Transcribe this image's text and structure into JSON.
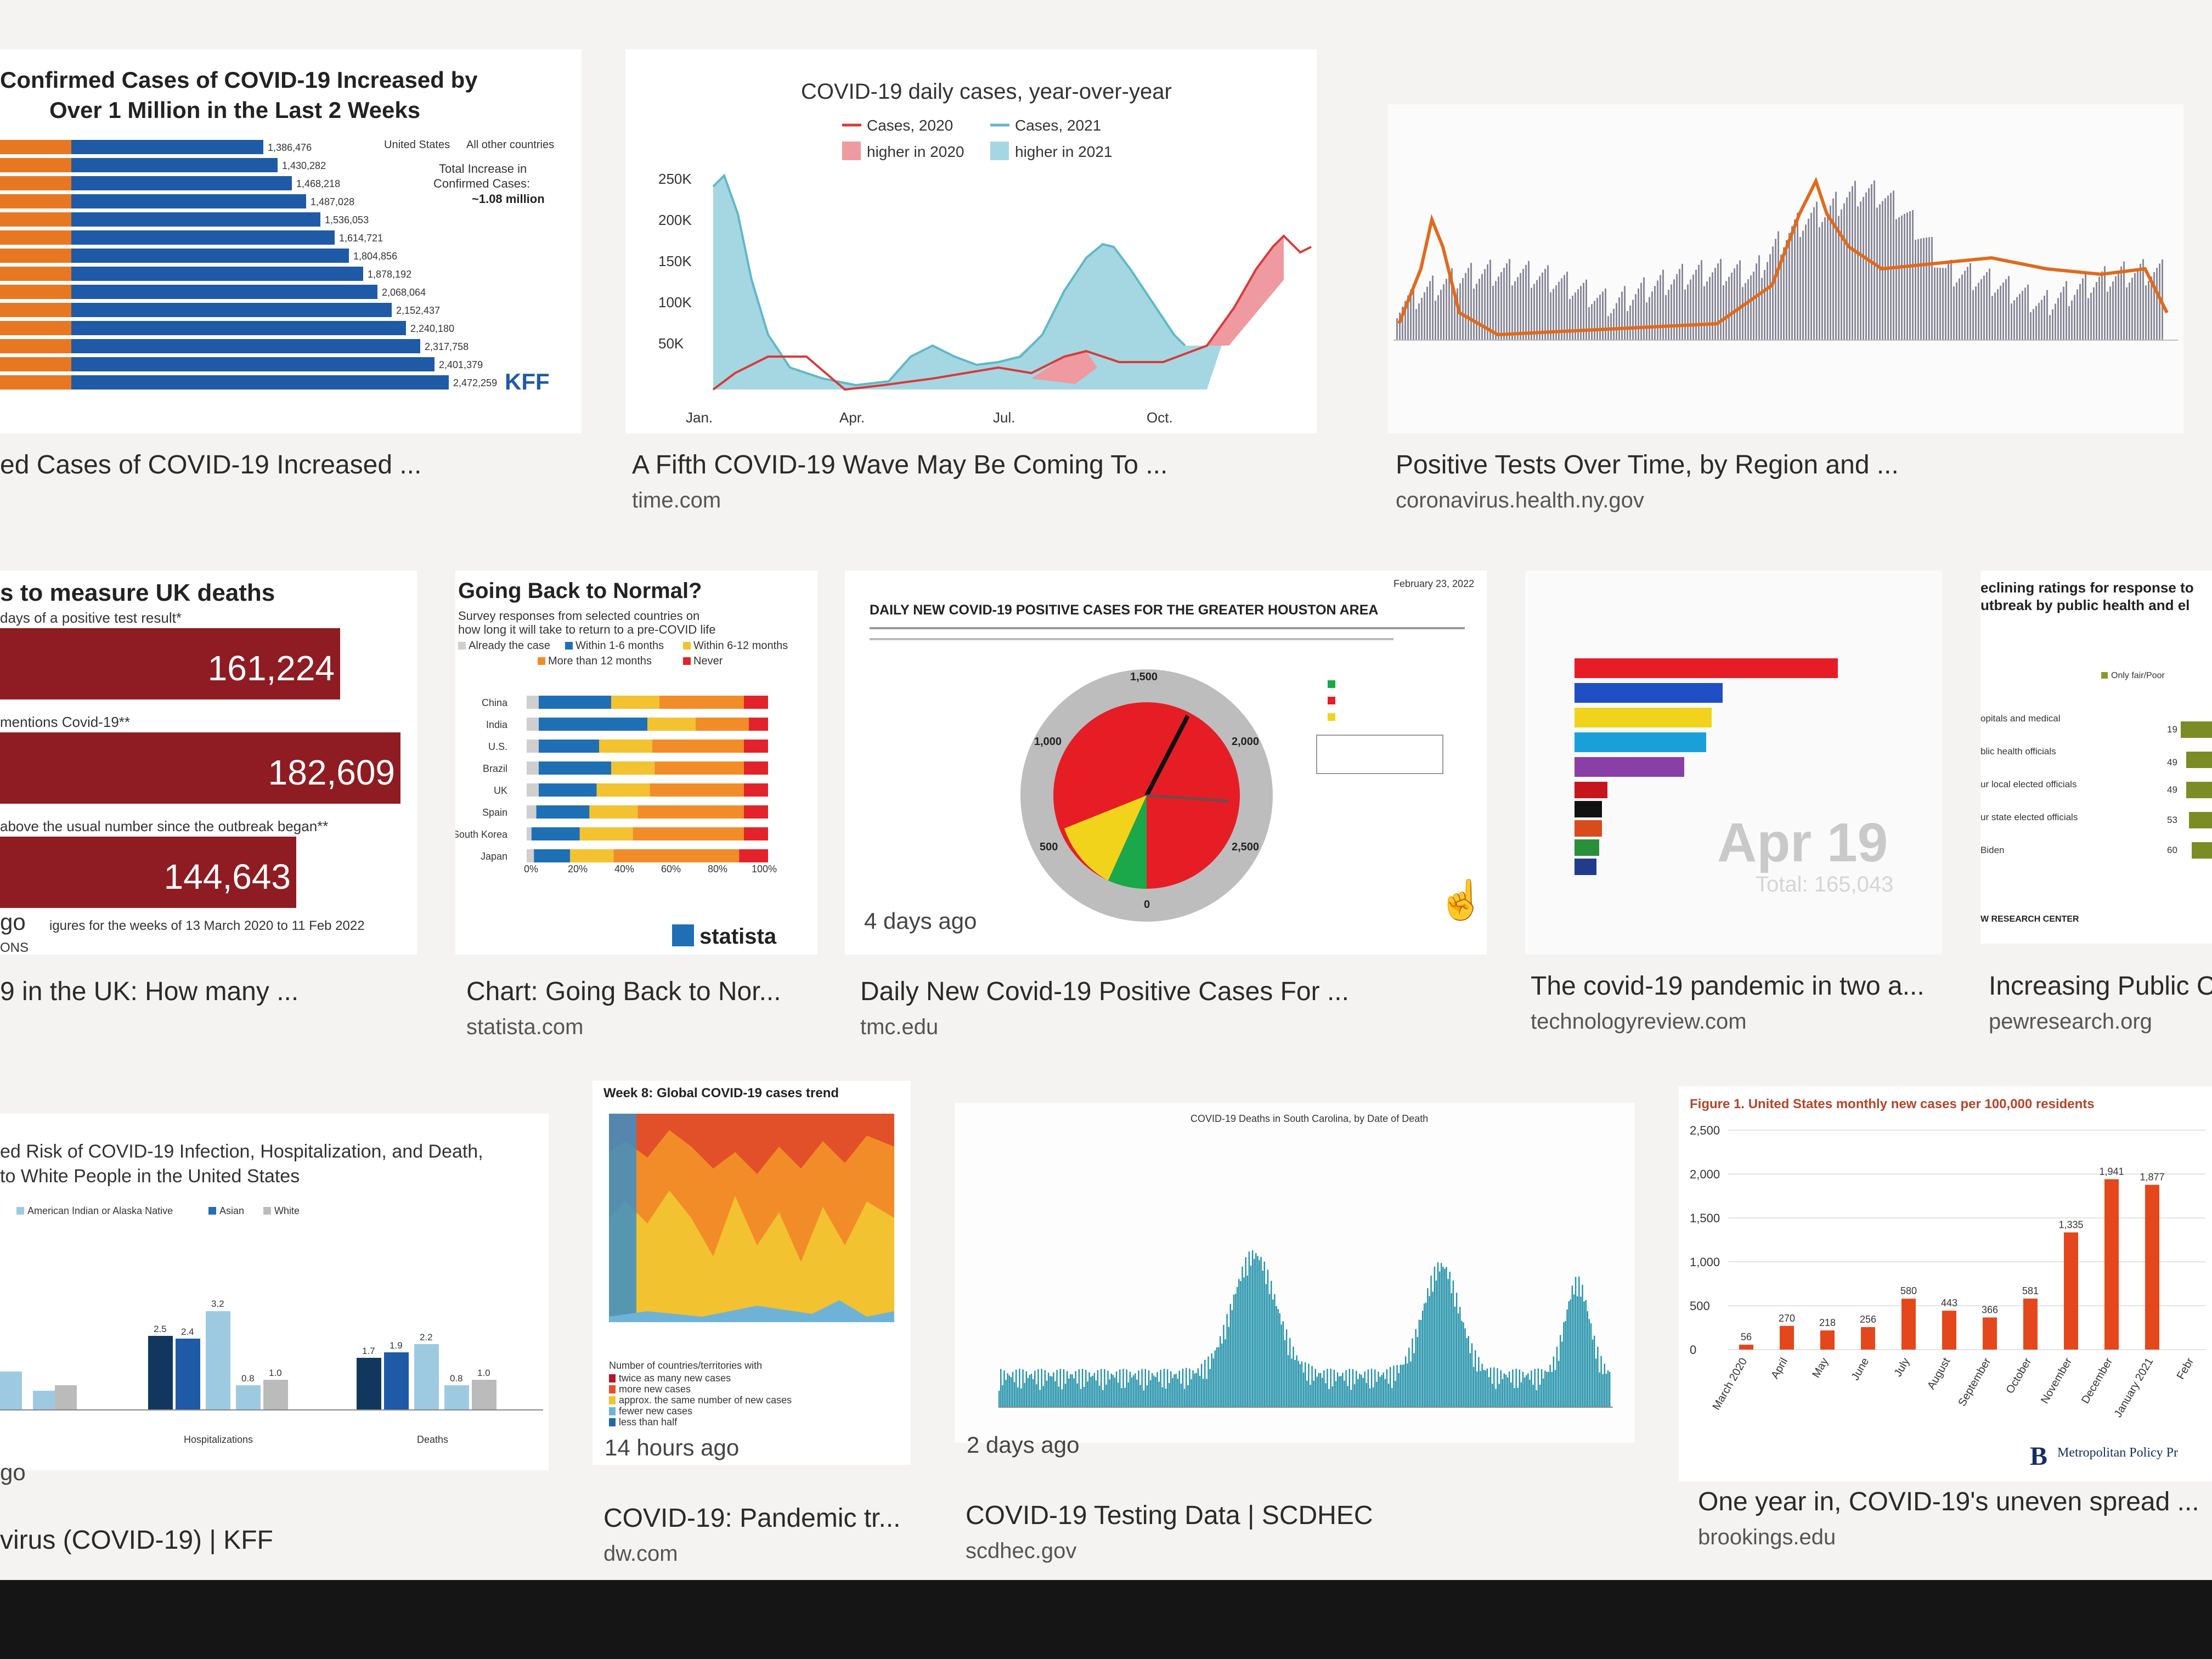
{
  "results": [
    {
      "title": "ed Cases of COVID-19 Increased ...",
      "source": ""
    },
    {
      "title": "A Fifth COVID-19 Wave May Be Coming To ...",
      "source": "time.com"
    },
    {
      "title": "Positive Tests Over Time, by Region and ...",
      "source": "coronavirus.health.ny.gov"
    },
    {
      "title": "9 in the UK: How many ...",
      "source": ""
    },
    {
      "title": "Chart: Going Back to Nor...",
      "source": "statista.com"
    },
    {
      "title": "Daily New Covid-19 Positive Cases For ...",
      "source": "tmc.edu",
      "age": "4 days ago"
    },
    {
      "title": "The covid-19 pandemic in two a...",
      "source": "technologyreview.com"
    },
    {
      "title": "Increasing Public C",
      "source": "pewresearch.org"
    },
    {
      "title": "virus (COVID-19) | KFF",
      "source": ""
    },
    {
      "title": "COVID-19: Pandemic tr...",
      "source": "dw.com",
      "age": "14 hours ago"
    },
    {
      "title": "COVID-19 Testing Data | SCDHEC",
      "source": "scdhec.gov",
      "age": "2 days ago"
    },
    {
      "title": "One year in, COVID-19's uneven spread ...",
      "source": "brookings.edu"
    }
  ],
  "thumbs": {
    "kff_cases": {
      "title_line1": "Confirmed Cases of COVID-19 Increased by",
      "title_line2": "Over 1 Million in the Last 2 Weeks",
      "legend_us": "United States",
      "legend_other": "All other countries",
      "note_line1": "Total Increase in",
      "note_line2": "Confirmed Cases:",
      "note_line3": "~1.08 million",
      "logo": "KFF",
      "bar_labels": [
        "1,386,476",
        "1,430,282",
        "1,468,218",
        "1,487,028",
        "1,536,053",
        "1,614,721",
        "1,804,856",
        "1,878,192",
        "2,068,064",
        "2,152,437",
        "2,240,180",
        "2,317,758",
        "2,401,379",
        "2,472,259"
      ],
      "colors": {
        "us": "#e87722",
        "other": "#1f5aa6"
      }
    },
    "time_chart": {
      "title": "COVID-19 daily cases, year-over-year",
      "legend": [
        "Cases, 2020",
        "Cases, 2021",
        "higher in 2020",
        "higher in 2021"
      ],
      "y_ticks": [
        "250K",
        "200K",
        "150K",
        "100K",
        "50K"
      ],
      "x_ticks": [
        "Jan.",
        "Apr.",
        "Jul.",
        "Oct."
      ],
      "colors": {
        "c2020": "#d93a3a",
        "c2021": "#5fb7c9"
      }
    },
    "uk_deaths": {
      "title": "s to measure UK deaths",
      "sub1": "days of a positive test result*",
      "sub2": "mentions Covid-19**",
      "sub3": "above the usual number since the outbreak began**",
      "values": [
        "161,224",
        "182,609",
        "144,643"
      ],
      "footer": "igures for the weeks of 13 March 2020 to 11 Feb 2022",
      "ago": "go",
      "source": "ONS",
      "color": "#8e1c22"
    },
    "statista": {
      "title": "Going Back to Normal?",
      "subtitle1": "Survey responses from selected countries on",
      "subtitle2": "how long it will take to return to a pre-COVID life",
      "legend": [
        "Already the case",
        "Within 1-6 months",
        "Within 6-12 months",
        "More than 12 months",
        "Never"
      ],
      "countries": [
        "China",
        "India",
        "U.S.",
        "Brazil",
        "UK",
        "Spain",
        "South Korea",
        "Japan"
      ],
      "ticks": [
        "0%",
        "20%",
        "40%",
        "60%",
        "80%",
        "100%"
      ],
      "logo": "statista"
    },
    "houston": {
      "title": "DAILY NEW COVID-19 POSITIVE CASES FOR THE GREATER HOUSTON AREA",
      "date": "February 23, 2022",
      "gauge_labels": [
        "0",
        "500",
        "1,000",
        "1,500",
        "2,000",
        "2,500"
      ]
    },
    "techreview": {
      "date": "Apr 19",
      "total": "Total: 165,043"
    },
    "pew": {
      "title1": "eclining ratings for response to",
      "title2": "utbreak by public health and el",
      "rows": [
        [
          "opitals and medical",
          "19"
        ],
        [
          "blic health officials",
          "49"
        ],
        [
          "ur local elected officials",
          "49"
        ],
        [
          "ur state elected officials",
          "53"
        ],
        [
          "Biden",
          "60"
        ]
      ],
      "legend": "Only fair/Poor",
      "footer": "W RESEARCH CENTER"
    },
    "kff_risk": {
      "title1": "ed Risk of COVID-19 Infection, Hospitalization, and Death,",
      "title2": "to White People in the United States",
      "groups": [
        "Hospitalizations",
        "Deaths"
      ],
      "values": [
        "2.5",
        "2.4",
        "3.2",
        "0.8",
        "1.0",
        "1.7",
        "1.9",
        "2.2",
        "0.8",
        "1.0"
      ],
      "legend": [
        "American Indian or Alaska Native",
        "Asian",
        "White"
      ],
      "ago": "go"
    },
    "dw": {
      "title": "Week 8: Global COVID-19 cases trend",
      "legend_title": "Number of countries/territories with",
      "legend": [
        "twice as many new cases",
        "more new cases",
        "approx. the same number of new cases",
        "fewer new cases",
        "less than half"
      ]
    },
    "scdhec": {
      "title": "COVID-19 Deaths in South Carolina, by Date of Death"
    },
    "brookings": {
      "title": "Figure 1. United States monthly new cases per 100,000 residents",
      "y_ticks": [
        "2,500",
        "2,000",
        "1,500",
        "1,000",
        "500",
        "0"
      ],
      "months": [
        "March 2020",
        "April",
        "May",
        "June",
        "July",
        "August",
        "September",
        "October",
        "November",
        "December",
        "January 2021",
        "Febr"
      ],
      "logo": "B",
      "publisher": "Metropolitan Policy Pr"
    }
  },
  "chart_data": {
    "type": "bar",
    "title": "Figure 1. United States monthly new cases per 100,000 residents",
    "categories": [
      "March 2020",
      "April",
      "May",
      "June",
      "July",
      "August",
      "September",
      "October",
      "November",
      "December",
      "January 2021"
    ],
    "values": [
      56,
      270,
      218,
      256,
      580,
      443,
      366,
      581,
      1335,
      1941,
      1877
    ],
    "ylim": [
      0,
      2500
    ]
  }
}
